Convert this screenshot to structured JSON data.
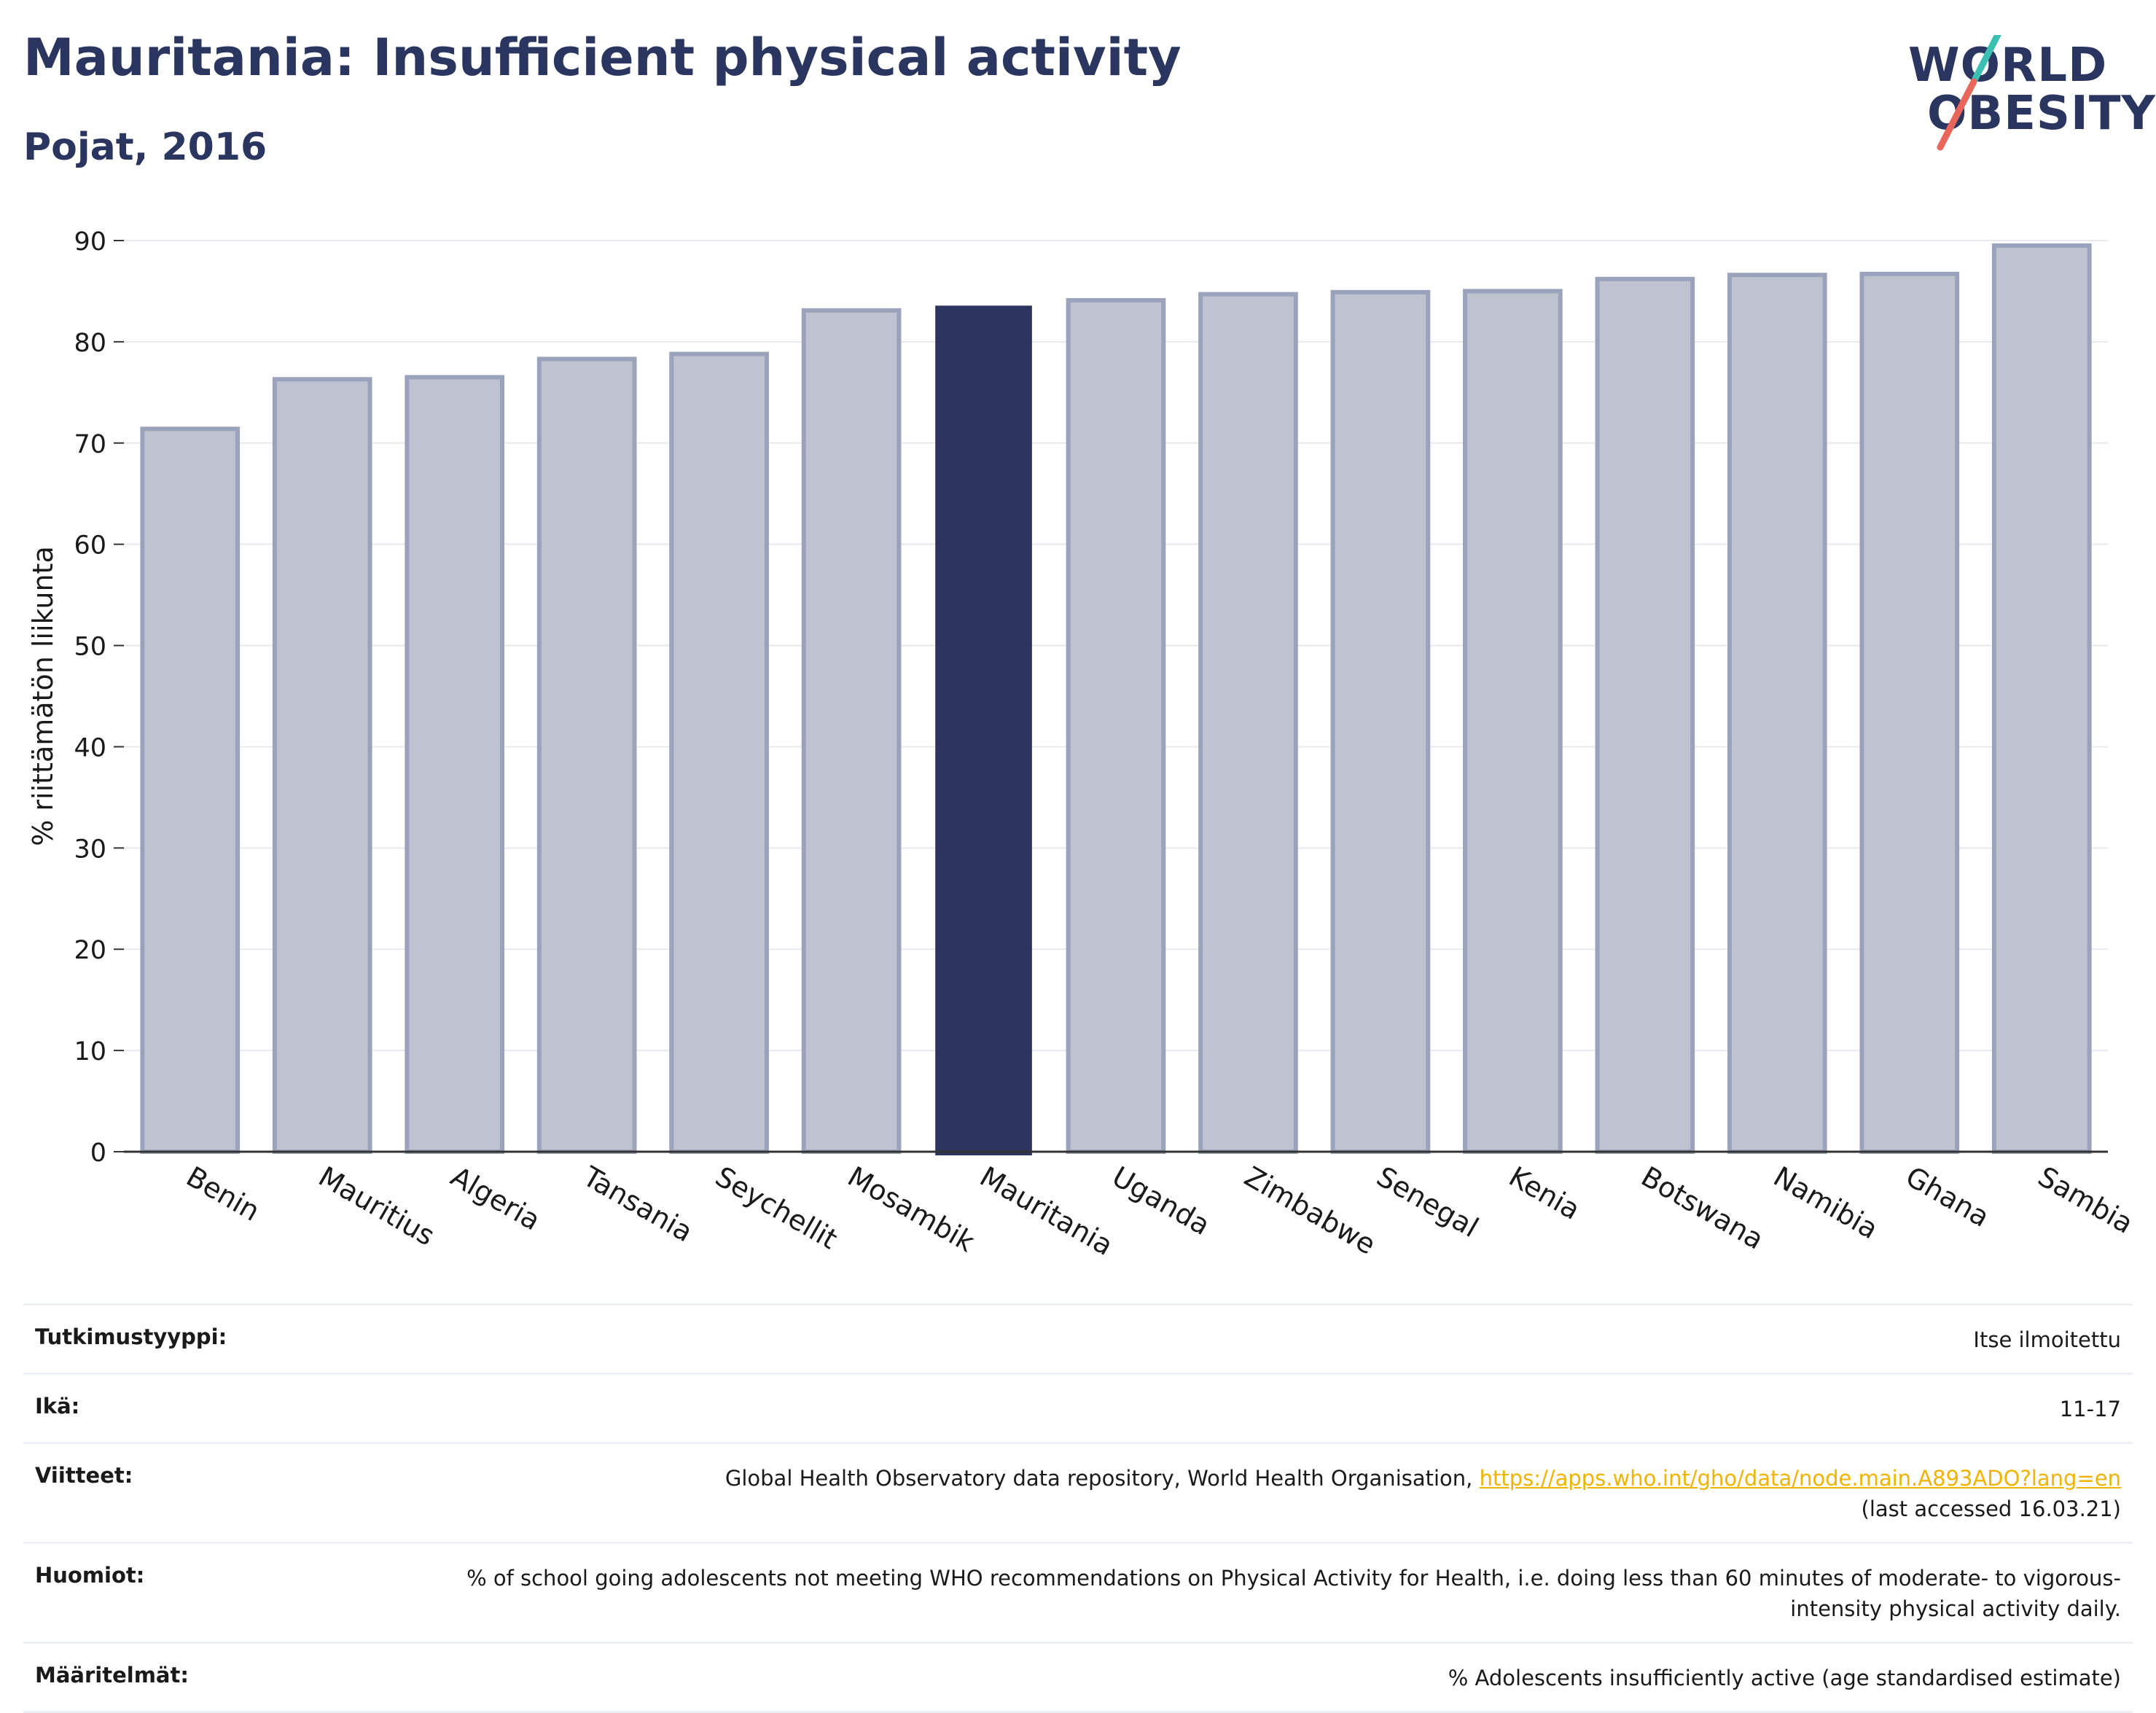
{
  "header": {
    "title": "Mauritania: Insufficient physical activity",
    "subtitle": "Pojat, 2016"
  },
  "logo": {
    "line1": "WORLD",
    "line2": "OBESITY",
    "colors": {
      "text": "#2a3560",
      "slash_top": "#3bbfb2",
      "slash_bottom": "#e8665a"
    }
  },
  "chart_data": {
    "type": "bar",
    "title": "",
    "xlabel": "",
    "ylabel": "% riittämätön liikunta",
    "ylim": [
      0,
      90
    ],
    "yticks": [
      0,
      10,
      20,
      30,
      40,
      50,
      60,
      70,
      80,
      90
    ],
    "grid": true,
    "categories": [
      "Benin",
      "Mauritius",
      "Algeria",
      "Tansania",
      "Seychellit",
      "Mosambik",
      "Mauritania",
      "Uganda",
      "Zimbabwe",
      "Senegal",
      "Kenia",
      "Botswana",
      "Namibia",
      "Ghana",
      "Sambia"
    ],
    "values": [
      71.4,
      76.3,
      76.5,
      78.3,
      78.8,
      83.1,
      83.5,
      84.1,
      84.7,
      84.9,
      85.0,
      86.2,
      86.6,
      86.7,
      89.5
    ],
    "highlight": "Mauritania",
    "colors": {
      "bar": "#bfc3d0",
      "bar_edge": "#9ba2bb",
      "highlight": "#2b3560",
      "axis": "#333333",
      "grid": "#e8e9ef"
    }
  },
  "info": [
    {
      "label": "Tutkimustyyppi:",
      "value": "Itse ilmoitettu"
    },
    {
      "label": "Ikä:",
      "value": "11-17"
    },
    {
      "label": "Viitteet:",
      "value": "Global Health Observatory data repository, World Health Organisation,",
      "link": "https://apps.who.int/gho/data/node.main.A893ADO?lang=en",
      "value2": "(last accessed 16.03.21)"
    },
    {
      "label": "Huomiot:",
      "value": "% of school going adolescents not meeting WHO recommendations on Physical Activity for Health, i.e. doing less than 60 minutes of moderate- to vigorous-intensity physical activity daily."
    },
    {
      "label": "Määritelmät:",
      "value": "% Adolescents insufficiently active (age standardised estimate)"
    }
  ]
}
